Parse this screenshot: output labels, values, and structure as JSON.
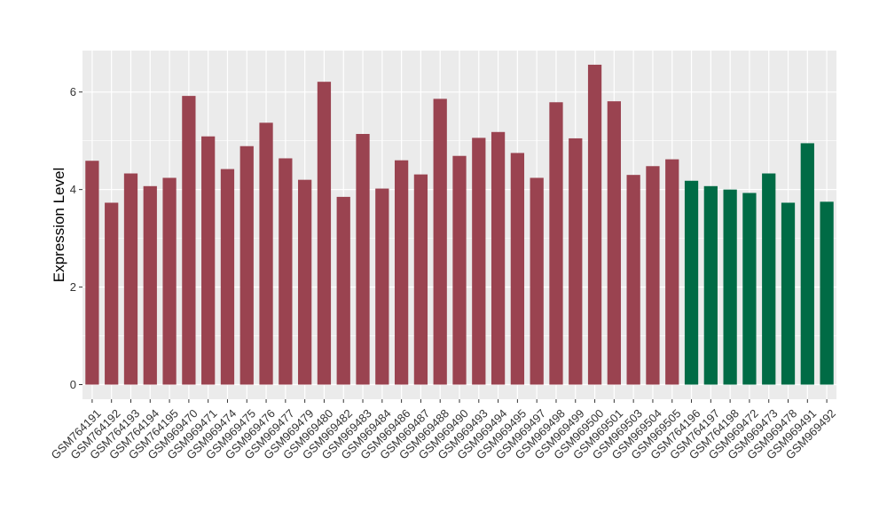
{
  "chart_data": {
    "type": "bar",
    "title": "",
    "xlabel": "",
    "ylabel": "Expression Level",
    "ylim": [
      -0.3,
      6.85
    ],
    "yticks": [
      0,
      2,
      4,
      6
    ],
    "grid": true,
    "legend": "none",
    "colors": {
      "panel_background": "#ebebeb",
      "grid": "#ffffff",
      "axis_text": "#333333"
    },
    "categories": [
      "GSM764191",
      "GSM764192",
      "GSM764193",
      "GSM764194",
      "GSM764195",
      "GSM969470",
      "GSM969471",
      "GSM969474",
      "GSM969475",
      "GSM969476",
      "GSM969477",
      "GSM969479",
      "GSM969480",
      "GSM969482",
      "GSM969483",
      "GSM969484",
      "GSM969486",
      "GSM969487",
      "GSM969488",
      "GSM969490",
      "GSM969493",
      "GSM969494",
      "GSM969495",
      "GSM969497",
      "GSM969498",
      "GSM969499",
      "GSM969500",
      "GSM969501",
      "GSM969503",
      "GSM969504",
      "GSM969505",
      "GSM764196",
      "GSM764197",
      "GSM764198",
      "GSM969472",
      "GSM969473",
      "GSM969478",
      "GSM969491",
      "GSM969492"
    ],
    "values": [
      4.59,
      3.73,
      4.33,
      4.07,
      4.24,
      5.92,
      5.09,
      4.42,
      4.89,
      5.37,
      4.64,
      4.2,
      6.21,
      3.85,
      5.14,
      4.02,
      4.6,
      4.31,
      5.86,
      4.69,
      5.06,
      5.18,
      4.75,
      4.24,
      5.79,
      5.05,
      6.56,
      5.81,
      4.3,
      4.48,
      4.62,
      4.18,
      4.07,
      4.0,
      3.93,
      4.33,
      3.73,
      4.95,
      3.75
    ],
    "bar_colors": [
      "#9a4350",
      "#9a4350",
      "#9a4350",
      "#9a4350",
      "#9a4350",
      "#9a4350",
      "#9a4350",
      "#9a4350",
      "#9a4350",
      "#9a4350",
      "#9a4350",
      "#9a4350",
      "#9a4350",
      "#9a4350",
      "#9a4350",
      "#9a4350",
      "#9a4350",
      "#9a4350",
      "#9a4350",
      "#9a4350",
      "#9a4350",
      "#9a4350",
      "#9a4350",
      "#9a4350",
      "#9a4350",
      "#9a4350",
      "#9a4350",
      "#9a4350",
      "#9a4350",
      "#9a4350",
      "#9a4350",
      "#006b45",
      "#006b45",
      "#006b45",
      "#006b45",
      "#006b45",
      "#006b45",
      "#006b45",
      "#006b45"
    ]
  }
}
